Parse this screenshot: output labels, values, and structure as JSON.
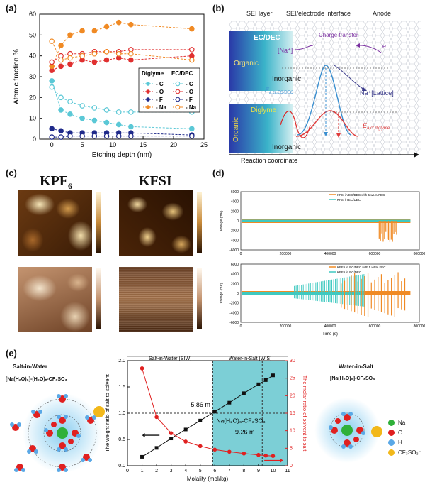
{
  "panels": {
    "a": "(a)",
    "b": "(b)",
    "c": "(c)",
    "d": "(d)",
    "e": "(e)"
  },
  "chart_data": [
    {
      "panel": "a",
      "type": "line",
      "xlabel": "Etching depth (nm)",
      "ylabel": "Atomic fraction %",
      "xlim": [
        -2,
        25
      ],
      "ylim": [
        0,
        60
      ],
      "xticks": [
        "0",
        "5",
        "10",
        "15",
        "20",
        "25"
      ],
      "yticks": [
        "0",
        "10",
        "20",
        "30",
        "40",
        "50",
        "60"
      ],
      "legend": {
        "group1": "Diglyme",
        "group2": "EC/DEC",
        "items": [
          "C",
          "O",
          "F",
          "Na"
        ]
      },
      "colors": {
        "C": "#5bc8d6",
        "O": "#e03030",
        "F": "#1f2a8a",
        "Na": "#f08a24"
      },
      "x": [
        0,
        1.5,
        3,
        5,
        7,
        9,
        11,
        13,
        23
      ],
      "series": [
        {
          "name": "Diglyme C",
          "values": [
            28,
            14,
            12,
            10,
            9,
            8,
            7,
            6,
            5
          ]
        },
        {
          "name": "Diglyme O",
          "values": [
            33,
            35,
            36,
            38,
            37,
            38,
            39,
            38,
            40
          ]
        },
        {
          "name": "Diglyme F",
          "values": [
            5,
            4,
            3,
            3,
            3,
            3,
            3,
            3,
            2
          ]
        },
        {
          "name": "Diglyme Na",
          "values": [
            35,
            45,
            50,
            52,
            52,
            54,
            56,
            55,
            53
          ]
        },
        {
          "name": "EC/DEC C",
          "values": [
            25,
            20,
            18,
            16,
            15,
            14,
            13,
            13,
            13
          ]
        },
        {
          "name": "EC/DEC O",
          "values": [
            37,
            40,
            41,
            41,
            42,
            42,
            42,
            43,
            43
          ]
        },
        {
          "name": "EC/DEC F",
          "values": [
            1,
            1,
            1.5,
            1.5,
            1.5,
            1.5,
            1.5,
            1.5,
            1.5
          ]
        },
        {
          "name": "EC/DEC Na",
          "values": [
            47,
            38,
            39,
            40,
            41,
            42,
            41,
            41,
            38
          ]
        }
      ]
    },
    {
      "panel": "d",
      "type": "line",
      "xlabel": "Time (s)",
      "ylabel": "Voltage (mV)",
      "xticks": [
        "0",
        "200000",
        "400000",
        "600000",
        "800000"
      ],
      "yticks": [
        "6000",
        "4000",
        "2000",
        "0",
        "-2000",
        "-4000",
        "-6000"
      ],
      "top_legend": [
        "KFSI in EC/DEC with 5 wt.% FEC",
        "KFSI in EC/DEC"
      ],
      "bottom_legend": [
        "KPF6 in EC/DEC with 5 wt.% FEC",
        "KPF6 in EC/DEC"
      ],
      "colors": {
        "orange": "#f08a24",
        "cyan": "#3ec9c0"
      }
    },
    {
      "panel": "e",
      "type": "line",
      "xlabel": "Molality (mol/kg)",
      "ylabel_left": "The weight ratio of salt to solvent",
      "ylabel_right": "The molar ratio of solvent to salt",
      "xticks": [
        "0",
        "1",
        "2",
        "3",
        "4",
        "5",
        "6",
        "7",
        "8",
        "9",
        "10",
        "11"
      ],
      "yticks_left": [
        "0.0",
        "0.5",
        "1.0",
        "1.5",
        "2.0"
      ],
      "yticks_right": [
        "0",
        "5",
        "10",
        "15",
        "20",
        "25",
        "30"
      ],
      "x": [
        1,
        2,
        3,
        4,
        5,
        6,
        7,
        8,
        9,
        9.5,
        10
      ],
      "weight_ratio": [
        0.17,
        0.34,
        0.52,
        0.69,
        0.86,
        1.03,
        1.2,
        1.38,
        1.55,
        1.63,
        1.72
      ],
      "molar_ratio": [
        27.8,
        13.9,
        9.3,
        6.9,
        5.6,
        4.6,
        4.0,
        3.5,
        3.1,
        2.9,
        2.8
      ],
      "regions": [
        "Salt-in-Water (SIW)",
        "Water-in-Salt (WIS)"
      ],
      "annotations": [
        "5.86 m",
        "9.26 m",
        "Na(H₂O)₆-CF₃SO₃"
      ],
      "colors": {
        "weight": "#111111",
        "molar": "#e02020",
        "wis": "#7ccfd6"
      }
    }
  ],
  "b": {
    "headers": [
      "SEI layer",
      "SEI/electrode interface",
      "Anode"
    ],
    "top_solvent": "EC/DEC",
    "bottom_solvent": "Diglyme",
    "organic": "Organic",
    "inorganic": "Inorganic",
    "na_ion": "[Na⁺]",
    "charge_transfer": "Charge transfer",
    "electron": "e⁻",
    "lattice": "Na⁺[Lattice]⁻",
    "ea_ec": "E",
    "ea_ec_sub": "a,ct,EC/DEC",
    "ea_dig": "E",
    "ea_dig_sub": "a,ct,diglyme",
    "reaction_coordinate": "Reaction coordinate"
  },
  "c": {
    "title_left": "KPF",
    "title_left_sub": "6",
    "title_right": "KFSI"
  },
  "e": {
    "left_title": "Salt-in-Water",
    "left_formula": "[Na(H₂O)₆]-(H₂O)ₙ-CF₃SO₃",
    "right_title": "Water-in-Salt",
    "right_formula": "[Na(H₂O)₆]-CF₃SO₃",
    "legend": [
      {
        "label": "Na",
        "color": "#2fb03a"
      },
      {
        "label": "O",
        "color": "#e02020"
      },
      {
        "label": "H",
        "color": "#5aa8e6"
      },
      {
        "label": "CF₃SO₃⁻",
        "color": "#f2b81a"
      }
    ]
  }
}
